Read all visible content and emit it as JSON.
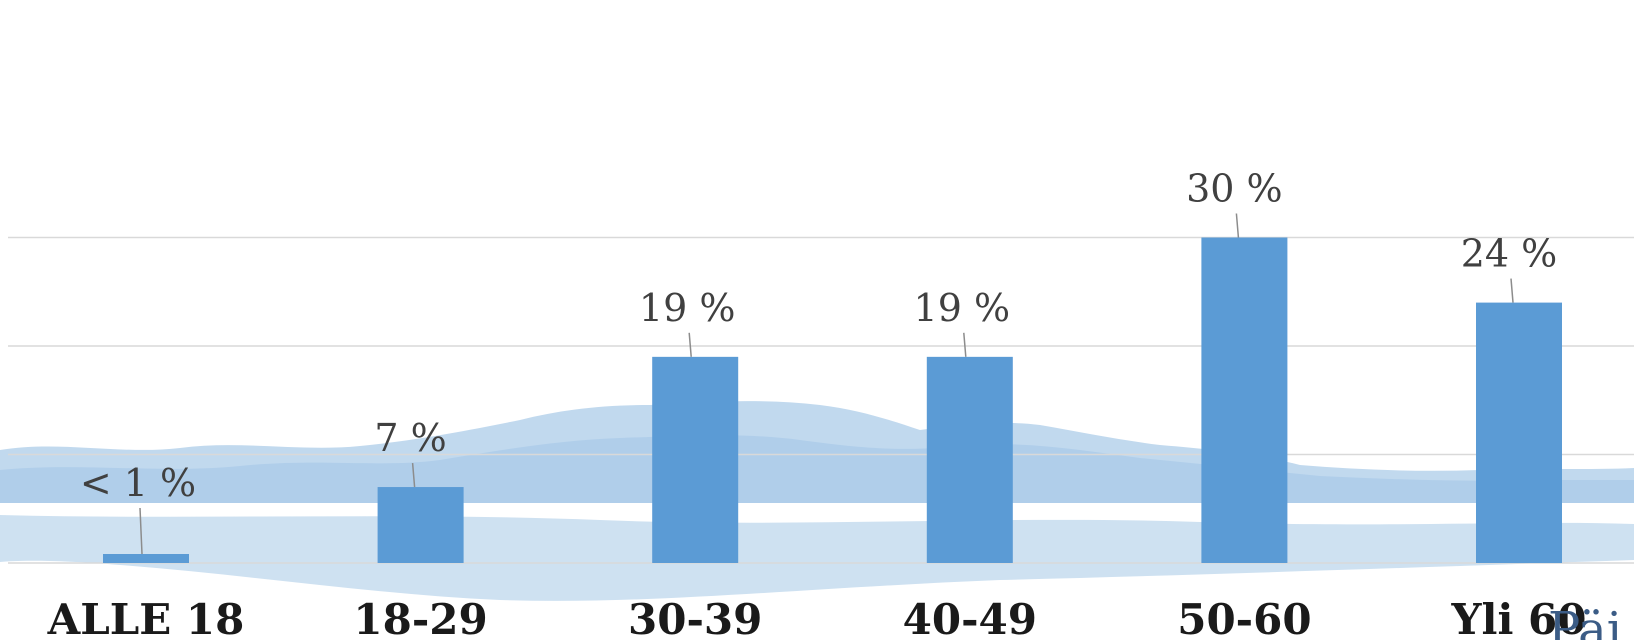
{
  "chart_data": {
    "type": "bar",
    "categories": [
      "ALLE 18",
      "18-29",
      "30-39",
      "40-49",
      "50-60",
      "Yli 60"
    ],
    "values": [
      0.5,
      7,
      19,
      19,
      30,
      24
    ],
    "data_labels": [
      "< 1 %",
      "7 %",
      "19 %",
      "19 %",
      "30 %",
      "24 %"
    ],
    "ylim": [
      0,
      35
    ],
    "grid": true,
    "legend": "none",
    "bar_color": "#5b9bd5"
  },
  "branding": {
    "logo_partial": "Päi"
  },
  "colors": {
    "gridline": "#d9d9d9",
    "leader_line": "#8c8c8c",
    "landscape_light": "#c6dcef",
    "landscape_mid": "#9dc3e6"
  }
}
